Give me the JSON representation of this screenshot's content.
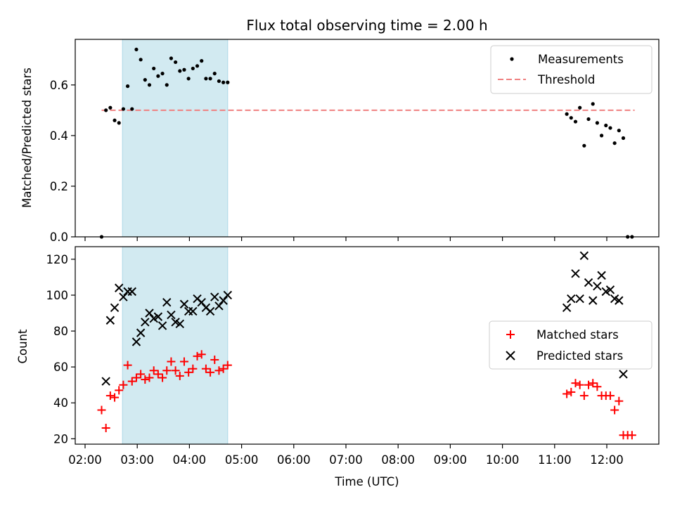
{
  "chart_data": [
    {
      "type": "scatter",
      "title": "Flux total observing time = 2.00 h",
      "xlabel": "",
      "ylabel": "Matched/Predicted stars",
      "xlim": [
        "02:00",
        "13:00"
      ],
      "ylim": [
        0,
        0.78
      ],
      "yticks": [
        0.0,
        0.2,
        0.4,
        0.6
      ],
      "ytick_labels": [
        "0.0",
        "0.2",
        "0.4",
        "0.6"
      ],
      "grid": false,
      "legend_placement": "top-right",
      "shaded_interval": {
        "x_start": "02:43",
        "x_end": "04:44",
        "color": "#add8e6"
      },
      "series": [
        {
          "name": "Measurements",
          "kind": "points",
          "color": "#000000",
          "x": [
            "02:19",
            "02:24",
            "02:29",
            "02:34",
            "02:39",
            "02:44",
            "02:49",
            "02:54",
            "02:59",
            "03:04",
            "03:09",
            "03:14",
            "03:19",
            "03:24",
            "03:29",
            "03:34",
            "03:39",
            "03:44",
            "03:49",
            "03:54",
            "03:59",
            "04:04",
            "04:09",
            "04:14",
            "04:19",
            "04:24",
            "04:29",
            "04:34",
            "04:39",
            "04:44",
            "11:14",
            "11:19",
            "11:24",
            "11:29",
            "11:34",
            "11:39",
            "11:44",
            "11:49",
            "11:54",
            "11:59",
            "12:04",
            "12:09",
            "12:14",
            "12:19",
            "12:24",
            "12:29"
          ],
          "y": [
            0.0,
            0.5,
            0.51,
            0.46,
            0.45,
            0.505,
            0.595,
            0.505,
            0.74,
            0.7,
            0.62,
            0.6,
            0.665,
            0.635,
            0.645,
            0.6,
            0.705,
            0.69,
            0.655,
            0.66,
            0.625,
            0.665,
            0.675,
            0.695,
            0.625,
            0.625,
            0.645,
            0.615,
            0.61,
            0.61,
            0.485,
            0.47,
            0.455,
            0.51,
            0.36,
            0.465,
            0.525,
            0.45,
            0.4,
            0.44,
            0.43,
            0.37,
            0.42,
            0.39,
            0.0,
            0.0
          ]
        },
        {
          "name": "Threshold",
          "kind": "dashed-line",
          "color": "#f08080",
          "x": [
            "02:19",
            "12:32"
          ],
          "y": [
            0.5,
            0.5
          ]
        }
      ]
    },
    {
      "type": "scatter",
      "title": "",
      "xlabel": "Time (UTC)",
      "ylabel": "Count",
      "xlim": [
        "02:00",
        "13:00"
      ],
      "ylim": [
        17,
        127
      ],
      "yticks": [
        20,
        40,
        60,
        80,
        100,
        120
      ],
      "ytick_labels": [
        "20",
        "40",
        "60",
        "80",
        "100",
        "120"
      ],
      "xticks": [
        "02:00",
        "03:00",
        "04:00",
        "05:00",
        "06:00",
        "07:00",
        "08:00",
        "09:00",
        "10:00",
        "11:00",
        "12:00"
      ],
      "grid": false,
      "legend_placement": "center-right",
      "shaded_interval": {
        "x_start": "02:43",
        "x_end": "04:44",
        "color": "#add8e6"
      },
      "series": [
        {
          "name": "Matched stars",
          "marker": "plus",
          "color": "#ff0000",
          "x": [
            "02:19",
            "02:24",
            "02:29",
            "02:34",
            "02:39",
            "02:44",
            "02:49",
            "02:54",
            "02:59",
            "03:04",
            "03:09",
            "03:14",
            "03:19",
            "03:24",
            "03:29",
            "03:34",
            "03:39",
            "03:44",
            "03:49",
            "03:54",
            "03:59",
            "04:04",
            "04:09",
            "04:14",
            "04:19",
            "04:24",
            "04:29",
            "04:34",
            "04:39",
            "04:44",
            "11:14",
            "11:19",
            "11:24",
            "11:29",
            "11:34",
            "11:39",
            "11:44",
            "11:49",
            "11:54",
            "11:59",
            "12:04",
            "12:09",
            "12:14",
            "12:19",
            "12:24",
            "12:29"
          ],
          "y": [
            36,
            26,
            44,
            43,
            47,
            50,
            61,
            52,
            54,
            56,
            53,
            54,
            58,
            56,
            54,
            58,
            63,
            58,
            55,
            63,
            57,
            59,
            66,
            67,
            59,
            57,
            64,
            58,
            59,
            61,
            45,
            46,
            51,
            50,
            44,
            50,
            51,
            49,
            44,
            44,
            44,
            36,
            41,
            22,
            22,
            22
          ]
        },
        {
          "name": "Predicted stars",
          "marker": "x",
          "color": "#000000",
          "x": [
            "02:24",
            "02:29",
            "02:34",
            "02:39",
            "02:44",
            "02:49",
            "02:54",
            "02:59",
            "03:04",
            "03:09",
            "03:14",
            "03:19",
            "03:24",
            "03:29",
            "03:34",
            "03:39",
            "03:44",
            "03:49",
            "03:54",
            "03:59",
            "04:04",
            "04:09",
            "04:14",
            "04:19",
            "04:24",
            "04:29",
            "04:34",
            "04:39",
            "04:44",
            "11:14",
            "11:19",
            "11:24",
            "11:29",
            "11:34",
            "11:39",
            "11:44",
            "11:49",
            "11:54",
            "11:59",
            "12:04",
            "12:09",
            "12:14",
            "12:19"
          ],
          "y": [
            52,
            86,
            93,
            104,
            99,
            102,
            102,
            74,
            79,
            85,
            90,
            87,
            88,
            83,
            96,
            89,
            85,
            84,
            95,
            91,
            91,
            98,
            96,
            93,
            91,
            99,
            94,
            97,
            100,
            93,
            98,
            112,
            98,
            122,
            107,
            97,
            105,
            111,
            102,
            103,
            98,
            97,
            56
          ]
        }
      ]
    }
  ]
}
